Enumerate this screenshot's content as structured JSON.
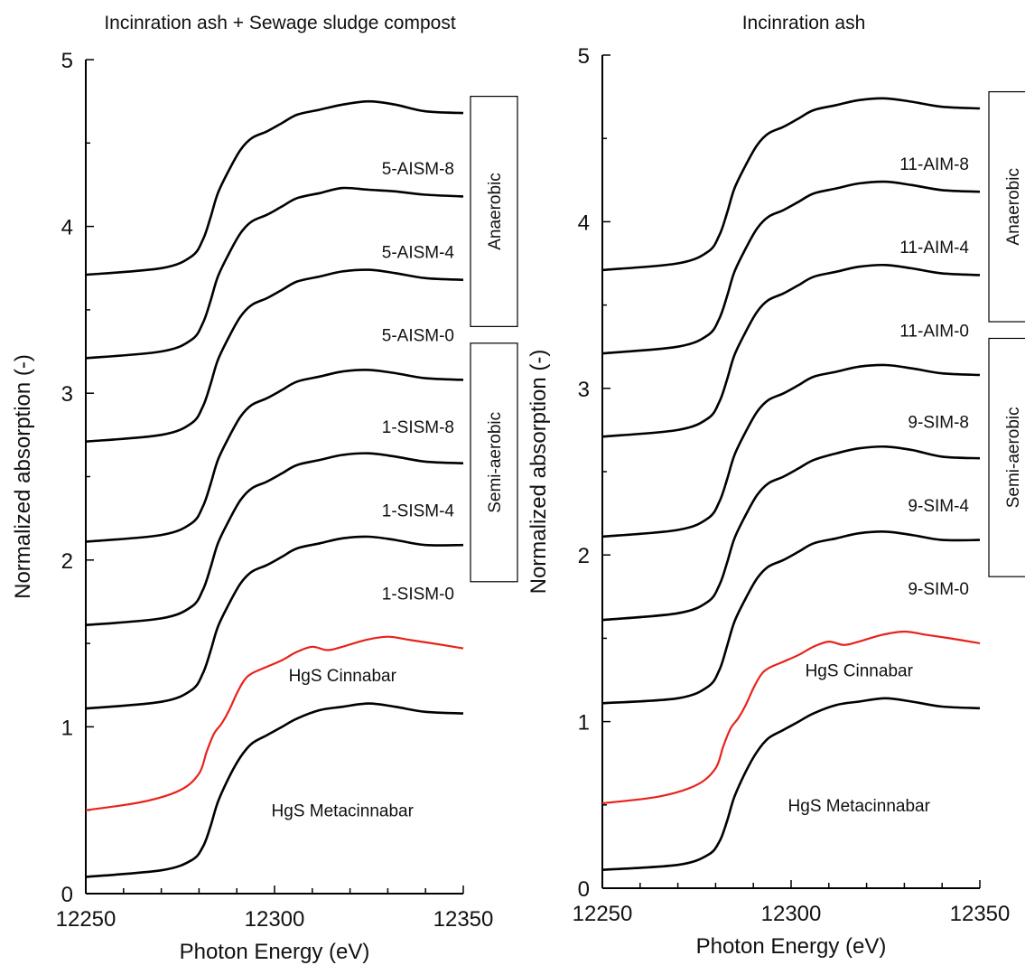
{
  "chart_data": [
    {
      "type": "line",
      "title": "Incinration ash + Sewage sludge compost",
      "xlabel": "Photon Energy (eV)",
      "ylabel": "Normalized absorption (-)",
      "xlim": [
        12250,
        12350
      ],
      "ylim": [
        0,
        5
      ],
      "xticks": [
        12250,
        12300,
        12350
      ],
      "yticks": [
        0,
        1,
        2,
        3,
        4,
        5
      ],
      "legend": "none",
      "series": [
        {
          "name": "HgS Metacinnabar",
          "color": "#000000",
          "offset": 0.1,
          "x": [
            12250,
            12270,
            12278,
            12281,
            12283,
            12285,
            12288,
            12291,
            12294,
            12298,
            12302,
            12306,
            12312,
            12318,
            12325,
            12332,
            12340,
            12350
          ],
          "y": [
            0.1,
            0.14,
            0.2,
            0.28,
            0.4,
            0.55,
            0.7,
            0.82,
            0.9,
            0.95,
            1.0,
            1.05,
            1.1,
            1.12,
            1.14,
            1.12,
            1.09,
            1.08
          ]
        },
        {
          "name": "HgS Cinnabar",
          "color": "#e8221a",
          "offset": 0.5,
          "x": [
            12250,
            12265,
            12275,
            12280,
            12282,
            12284,
            12286,
            12288,
            12290,
            12292,
            12294,
            12298,
            12302,
            12306,
            12310,
            12314,
            12318,
            12324,
            12330,
            12336,
            12342,
            12350
          ],
          "y": [
            0.5,
            0.55,
            0.62,
            0.72,
            0.85,
            0.96,
            1.02,
            1.1,
            1.2,
            1.28,
            1.32,
            1.36,
            1.4,
            1.45,
            1.48,
            1.46,
            1.48,
            1.52,
            1.54,
            1.52,
            1.5,
            1.47
          ]
        },
        {
          "name": "1-SISM-0",
          "color": "#000000",
          "offset": 1.1,
          "x": [
            12250,
            12270,
            12278,
            12281,
            12283,
            12285,
            12288,
            12291,
            12294,
            12298,
            12302,
            12306,
            12312,
            12318,
            12325,
            12332,
            12340,
            12350
          ],
          "y": [
            1.11,
            1.15,
            1.22,
            1.32,
            1.45,
            1.6,
            1.74,
            1.86,
            1.93,
            1.97,
            2.02,
            2.07,
            2.1,
            2.13,
            2.14,
            2.12,
            2.09,
            2.09
          ]
        },
        {
          "name": "1-SISM-4",
          "color": "#000000",
          "offset": 1.6,
          "x": [
            12250,
            12270,
            12278,
            12281,
            12283,
            12285,
            12288,
            12291,
            12294,
            12298,
            12302,
            12306,
            12312,
            12318,
            12325,
            12332,
            12340,
            12350
          ],
          "y": [
            1.61,
            1.65,
            1.72,
            1.82,
            1.95,
            2.1,
            2.24,
            2.36,
            2.43,
            2.47,
            2.52,
            2.57,
            2.6,
            2.63,
            2.64,
            2.62,
            2.59,
            2.58
          ]
        },
        {
          "name": "1-SISM-8",
          "color": "#000000",
          "offset": 2.1,
          "x": [
            12250,
            12270,
            12278,
            12281,
            12283,
            12285,
            12288,
            12291,
            12294,
            12298,
            12302,
            12306,
            12312,
            12318,
            12325,
            12332,
            12340,
            12350
          ],
          "y": [
            2.11,
            2.15,
            2.22,
            2.32,
            2.45,
            2.6,
            2.74,
            2.86,
            2.93,
            2.97,
            3.02,
            3.07,
            3.1,
            3.13,
            3.14,
            3.12,
            3.09,
            3.08
          ]
        },
        {
          "name": "5-AISM-0",
          "color": "#000000",
          "offset": 2.7,
          "x": [
            12250,
            12270,
            12278,
            12281,
            12283,
            12285,
            12288,
            12291,
            12294,
            12298,
            12302,
            12306,
            12312,
            12318,
            12325,
            12332,
            12340,
            12350
          ],
          "y": [
            2.71,
            2.75,
            2.82,
            2.92,
            3.05,
            3.2,
            3.34,
            3.46,
            3.53,
            3.57,
            3.62,
            3.67,
            3.7,
            3.73,
            3.74,
            3.72,
            3.69,
            3.68
          ]
        },
        {
          "name": "5-AISM-4",
          "color": "#000000",
          "offset": 3.2,
          "x": [
            12250,
            12270,
            12278,
            12281,
            12283,
            12285,
            12288,
            12291,
            12294,
            12298,
            12302,
            12306,
            12312,
            12318,
            12325,
            12332,
            12340,
            12350
          ],
          "y": [
            3.21,
            3.25,
            3.32,
            3.42,
            3.55,
            3.7,
            3.84,
            3.96,
            4.03,
            4.07,
            4.12,
            4.17,
            4.2,
            4.23,
            4.22,
            4.21,
            4.19,
            4.18
          ]
        },
        {
          "name": "5-AISM-8",
          "color": "#000000",
          "offset": 3.7,
          "x": [
            12250,
            12270,
            12278,
            12281,
            12283,
            12285,
            12288,
            12291,
            12294,
            12298,
            12302,
            12306,
            12312,
            12318,
            12325,
            12332,
            12340,
            12350
          ],
          "y": [
            3.71,
            3.75,
            3.82,
            3.92,
            4.05,
            4.2,
            4.34,
            4.46,
            4.53,
            4.57,
            4.62,
            4.67,
            4.7,
            4.73,
            4.75,
            4.73,
            4.69,
            4.68
          ]
        }
      ],
      "groups": [
        {
          "label": "Anaerobic",
          "ylim": [
            3.4,
            4.78
          ]
        },
        {
          "label": "Semi-aerobic",
          "ylim": [
            1.87,
            3.3
          ]
        }
      ]
    },
    {
      "type": "line",
      "title": "Incinration ash",
      "xlabel": "Photon Energy (eV)",
      "ylabel": "Normalized absorption (-)",
      "xlim": [
        12250,
        12350
      ],
      "ylim": [
        0,
        5
      ],
      "xticks": [
        12250,
        12300,
        12350
      ],
      "yticks": [
        0,
        1,
        2,
        3,
        4,
        5
      ],
      "legend": "none",
      "series": [
        {
          "name": "HgS Metacinnabar",
          "color": "#000000",
          "offset": 0.1,
          "x": [
            12250,
            12270,
            12278,
            12281,
            12283,
            12285,
            12288,
            12291,
            12294,
            12298,
            12302,
            12306,
            12312,
            12318,
            12325,
            12332,
            12340,
            12350
          ],
          "y": [
            0.11,
            0.14,
            0.2,
            0.28,
            0.4,
            0.55,
            0.7,
            0.82,
            0.9,
            0.95,
            1.0,
            1.05,
            1.1,
            1.12,
            1.14,
            1.12,
            1.09,
            1.08
          ]
        },
        {
          "name": "HgS Cinnabar",
          "color": "#e8221a",
          "offset": 0.5,
          "x": [
            12250,
            12265,
            12275,
            12280,
            12282,
            12284,
            12286,
            12288,
            12290,
            12292,
            12294,
            12298,
            12302,
            12306,
            12310,
            12314,
            12318,
            12324,
            12330,
            12336,
            12342,
            12350
          ],
          "y": [
            0.51,
            0.55,
            0.62,
            0.72,
            0.85,
            0.96,
            1.02,
            1.1,
            1.2,
            1.28,
            1.32,
            1.36,
            1.4,
            1.45,
            1.48,
            1.46,
            1.48,
            1.52,
            1.54,
            1.52,
            1.5,
            1.47
          ]
        },
        {
          "name": "9-SIM-0",
          "color": "#000000",
          "offset": 1.1,
          "x": [
            12250,
            12270,
            12278,
            12281,
            12283,
            12285,
            12288,
            12291,
            12294,
            12298,
            12302,
            12306,
            12312,
            12318,
            12325,
            12332,
            12340,
            12350
          ],
          "y": [
            1.11,
            1.14,
            1.21,
            1.31,
            1.45,
            1.6,
            1.74,
            1.86,
            1.93,
            1.97,
            2.02,
            2.07,
            2.1,
            2.13,
            2.14,
            2.12,
            2.09,
            2.09
          ]
        },
        {
          "name": "9-SIM-4",
          "color": "#000000",
          "offset": 1.6,
          "x": [
            12250,
            12270,
            12278,
            12281,
            12283,
            12285,
            12288,
            12291,
            12294,
            12298,
            12302,
            12306,
            12312,
            12318,
            12325,
            12332,
            12340,
            12350
          ],
          "y": [
            1.61,
            1.65,
            1.72,
            1.82,
            1.95,
            2.1,
            2.24,
            2.36,
            2.43,
            2.47,
            2.52,
            2.57,
            2.61,
            2.64,
            2.65,
            2.63,
            2.59,
            2.58
          ]
        },
        {
          "name": "9-SIM-8",
          "color": "#000000",
          "offset": 2.1,
          "x": [
            12250,
            12270,
            12278,
            12281,
            12283,
            12285,
            12288,
            12291,
            12294,
            12298,
            12302,
            12306,
            12312,
            12318,
            12325,
            12332,
            12340,
            12350
          ],
          "y": [
            2.11,
            2.15,
            2.22,
            2.32,
            2.45,
            2.6,
            2.74,
            2.86,
            2.93,
            2.97,
            3.02,
            3.07,
            3.1,
            3.13,
            3.14,
            3.12,
            3.09,
            3.08
          ]
        },
        {
          "name": "11-AIM-0",
          "color": "#000000",
          "offset": 2.7,
          "x": [
            12250,
            12270,
            12278,
            12281,
            12283,
            12285,
            12288,
            12291,
            12294,
            12298,
            12302,
            12306,
            12312,
            12318,
            12325,
            12332,
            12340,
            12350
          ],
          "y": [
            2.71,
            2.75,
            2.82,
            2.92,
            3.05,
            3.2,
            3.34,
            3.46,
            3.53,
            3.57,
            3.62,
            3.67,
            3.7,
            3.73,
            3.74,
            3.72,
            3.69,
            3.68
          ]
        },
        {
          "name": "11-AIM-4",
          "color": "#000000",
          "offset": 3.2,
          "x": [
            12250,
            12270,
            12278,
            12281,
            12283,
            12285,
            12288,
            12291,
            12294,
            12298,
            12302,
            12306,
            12312,
            12318,
            12325,
            12332,
            12340,
            12350
          ],
          "y": [
            3.21,
            3.25,
            3.32,
            3.42,
            3.55,
            3.7,
            3.84,
            3.96,
            4.03,
            4.07,
            4.12,
            4.17,
            4.2,
            4.23,
            4.24,
            4.22,
            4.19,
            4.18
          ]
        },
        {
          "name": "11-AIM-8",
          "color": "#000000",
          "offset": 3.7,
          "x": [
            12250,
            12270,
            12278,
            12281,
            12283,
            12285,
            12288,
            12291,
            12294,
            12298,
            12302,
            12306,
            12312,
            12318,
            12325,
            12332,
            12340,
            12350
          ],
          "y": [
            3.71,
            3.75,
            3.82,
            3.92,
            4.05,
            4.2,
            4.34,
            4.46,
            4.53,
            4.57,
            4.62,
            4.67,
            4.7,
            4.73,
            4.74,
            4.72,
            4.69,
            4.68
          ]
        }
      ],
      "groups": [
        {
          "label": "Anaerobic",
          "ylim": [
            3.4,
            4.78
          ]
        },
        {
          "label": "Semi-aerobic",
          "ylim": [
            1.87,
            3.3
          ]
        }
      ]
    }
  ]
}
